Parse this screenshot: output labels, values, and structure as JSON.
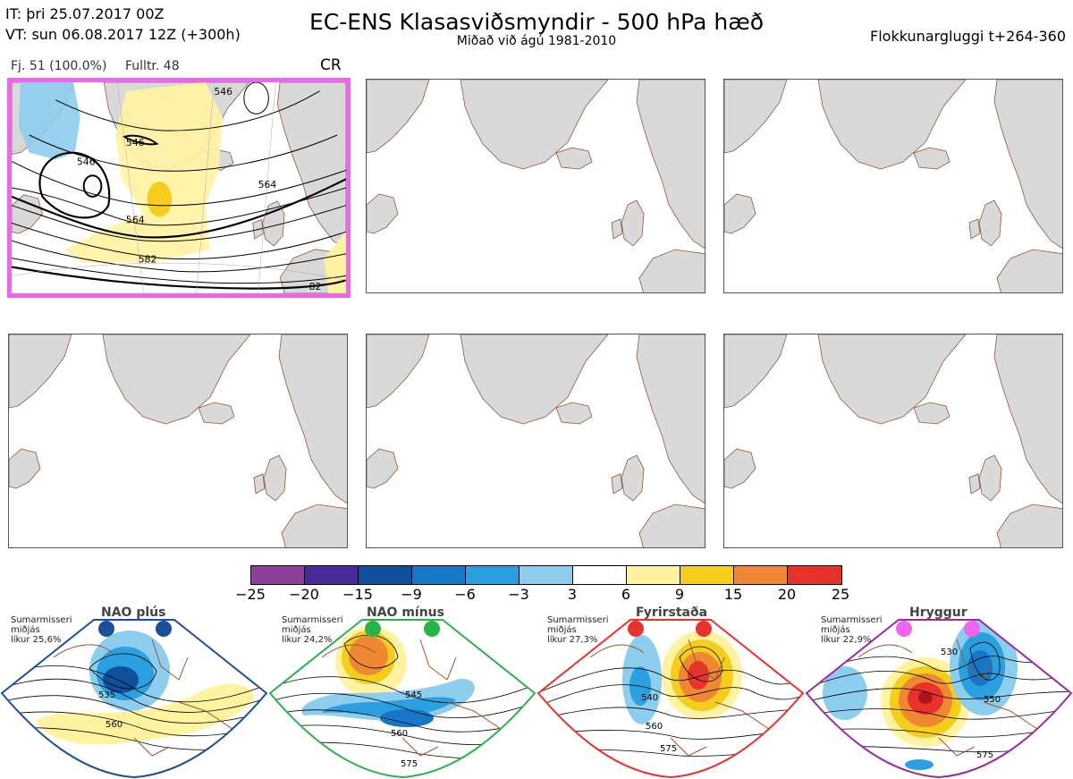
{
  "header": {
    "init_time": "IT: þri 25.07.2017 00Z",
    "valid_time": "VT: sun 06.08.2017 12Z  (+300h)",
    "title": "EC-ENS Klasasviðsmyndir - 500 hPa hæð",
    "subtitle": "Miðað við ágú 1981-2010",
    "window": "Flokkunargluggi t+264-360"
  },
  "panel1": {
    "count": "Fj. 51 (100.0%)",
    "representative": "Fulltr. 48",
    "regime_code": "CR",
    "contour_labels": [
      "546",
      "546",
      "564",
      "564",
      "582",
      "82",
      "546"
    ]
  },
  "colorbar": {
    "ticks": [
      "−25",
      "−20",
      "−15",
      "−9",
      "−6",
      "−3",
      "3",
      "6",
      "9",
      "15",
      "20",
      "25"
    ],
    "colors": [
      "#8e3f9a",
      "#4a2a96",
      "#0f4f9e",
      "#1477c8",
      "#2aa0e0",
      "#8dcdee",
      "#ffffff",
      "#fff3a0",
      "#f5cd1c",
      "#ef8833",
      "#e8322b",
      "#b0141a"
    ]
  },
  "regimes": [
    {
      "name": "NAO plús",
      "season": "Sumarmisseri",
      "desc": "miðjás",
      "prob": "líkur 25,6%",
      "color": "#1b4f9c",
      "labels": [
        "535",
        "560"
      ]
    },
    {
      "name": "NAO mínus",
      "season": "Sumarmisseri",
      "desc": "miðjás",
      "prob": "líkur 24,2%",
      "color": "#2ab24a",
      "labels": [
        "545",
        "560",
        "575"
      ]
    },
    {
      "name": "Fyrirstaða",
      "season": "Sumarmisseri",
      "desc": "miðjás",
      "prob": "líkur 27,3%",
      "color": "#e8322b",
      "labels": [
        "540",
        "560",
        "575"
      ]
    },
    {
      "name": "Hryggur",
      "season": "Sumarmisseri",
      "desc": "miðjás",
      "prob": "líkur 22,9%",
      "color": "#ee66ee",
      "labels": [
        "530",
        "550",
        "575"
      ]
    }
  ]
}
